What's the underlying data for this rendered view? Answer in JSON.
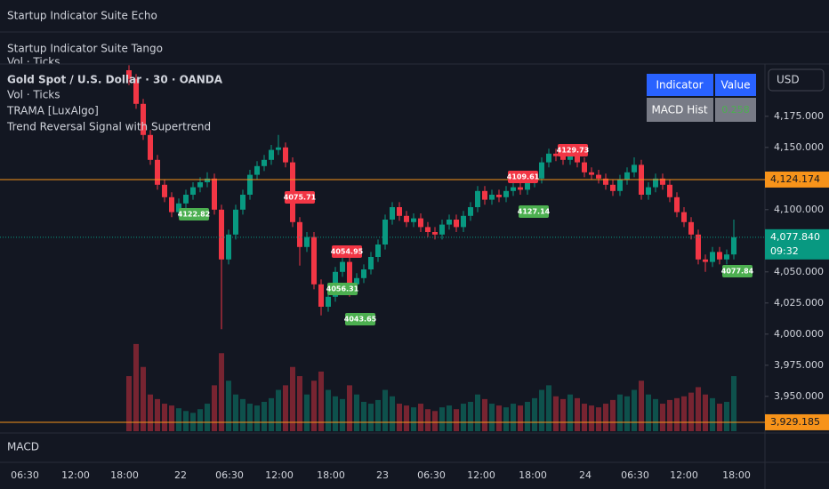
{
  "header": {
    "panel_1": "Startup Indicator Suite Echo",
    "panel_2": "Startup Indicator Suite Tango",
    "panel_2_sub": "Vol · Ticks"
  },
  "chart_data": {
    "type": "candlestick",
    "title": "Gold Spot / U.S. Dollar · 30 · OANDA",
    "indicators": [
      "Vol · Ticks",
      "TRAMA [LuxAlgo]",
      "Trend Reversal Signal with Supertrend"
    ],
    "currency": "USD",
    "colors": {
      "up": "#089981",
      "down": "#f23645"
    },
    "open": [
      4212,
      4205,
      4185,
      4160,
      4140,
      4120,
      4110,
      4098,
      4105,
      4112,
      4118,
      4122,
      4125,
      4100,
      4060,
      4080,
      4100,
      4112,
      4128,
      4135,
      4140,
      4148,
      4150,
      4138,
      4090,
      4070,
      4078,
      4040,
      4022,
      4030,
      4050,
      4058,
      4040,
      4045,
      4052,
      4062,
      4072,
      4092,
      4102,
      4095,
      4090,
      4093,
      4086,
      4082,
      4080,
      4088,
      4092,
      4086,
      4095,
      4102,
      4115,
      4108,
      4112,
      4110,
      4115,
      4118,
      4116,
      4122,
      4125,
      4138,
      4145,
      4143,
      4140,
      4146,
      4138,
      4130,
      4128,
      4125,
      4120,
      4115,
      4124,
      4130,
      4136,
      4112,
      4118,
      4125,
      4120,
      4110,
      4098,
      4090,
      4080,
      4060,
      4058,
      4066,
      4060,
      4064
    ],
    "high": [
      4216,
      4209,
      4189,
      4164,
      4144,
      4124,
      4114,
      4109,
      4116,
      4122,
      4126,
      4130,
      4129,
      4104,
      4084,
      4104,
      4116,
      4132,
      4139,
      4144,
      4152,
      4160,
      4154,
      4142,
      4094,
      4082,
      4082,
      4044,
      4034,
      4054,
      4062,
      4062,
      4049,
      4056,
      4066,
      4076,
      4096,
      4106,
      4106,
      4099,
      4097,
      4097,
      4090,
      4086,
      4092,
      4096,
      4096,
      4099,
      4106,
      4119,
      4119,
      4116,
      4116,
      4119,
      4122,
      4122,
      4126,
      4129,
      4142,
      4149,
      4149,
      4147,
      4150,
      4150,
      4142,
      4134,
      4132,
      4129,
      4124,
      4128,
      4134,
      4142,
      4140,
      4122,
      4129,
      4129,
      4124,
      4114,
      4102,
      4094,
      4084,
      4064,
      4070,
      4070,
      4068,
      4092
    ],
    "low": [
      4200,
      4181,
      4156,
      4136,
      4116,
      4106,
      4094,
      4094,
      4101,
      4108,
      4114,
      4118,
      4096,
      4004,
      4056,
      4076,
      4096,
      4108,
      4124,
      4131,
      4136,
      4144,
      4134,
      4086,
      4055,
      4066,
      4036,
      4015,
      4018,
      4026,
      4046,
      4030,
      4036,
      4041,
      4048,
      4058,
      4068,
      4088,
      4091,
      4086,
      4086,
      4082,
      4078,
      4076,
      4076,
      4084,
      4082,
      4082,
      4091,
      4098,
      4104,
      4104,
      4106,
      4106,
      4111,
      4112,
      4112,
      4118,
      4121,
      4134,
      4139,
      4136,
      4136,
      4134,
      4126,
      4124,
      4121,
      4116,
      4111,
      4111,
      4120,
      4126,
      4108,
      4108,
      4114,
      4116,
      4106,
      4094,
      4086,
      4076,
      4056,
      4050,
      4054,
      4056,
      4056,
      4060
    ],
    "close": [
      4205,
      4185,
      4160,
      4140,
      4120,
      4110,
      4098,
      4105,
      4112,
      4118,
      4122,
      4125,
      4100,
      4060,
      4080,
      4100,
      4112,
      4128,
      4135,
      4140,
      4148,
      4150,
      4138,
      4090,
      4070,
      4078,
      4040,
      4022,
      4030,
      4050,
      4058,
      4040,
      4045,
      4052,
      4062,
      4072,
      4092,
      4102,
      4095,
      4090,
      4093,
      4086,
      4082,
      4080,
      4088,
      4092,
      4086,
      4095,
      4102,
      4115,
      4108,
      4112,
      4110,
      4115,
      4118,
      4116,
      4122,
      4125,
      4138,
      4145,
      4143,
      4140,
      4146,
      4138,
      4130,
      4128,
      4125,
      4120,
      4115,
      4124,
      4130,
      4136,
      4112,
      4118,
      4125,
      4120,
      4110,
      4098,
      4090,
      4080,
      4060,
      4058,
      4066,
      4060,
      4064,
      4077.84
    ],
    "volume": [
      60,
      95,
      70,
      40,
      35,
      30,
      28,
      25,
      22,
      20,
      24,
      30,
      50,
      85,
      55,
      40,
      35,
      30,
      28,
      32,
      36,
      45,
      50,
      70,
      60,
      40,
      55,
      65,
      45,
      38,
      35,
      50,
      40,
      32,
      30,
      34,
      45,
      38,
      30,
      28,
      26,
      30,
      24,
      22,
      26,
      28,
      24,
      30,
      32,
      40,
      35,
      30,
      28,
      26,
      30,
      28,
      32,
      36,
      45,
      50,
      38,
      35,
      40,
      36,
      30,
      28,
      26,
      30,
      34,
      40,
      38,
      45,
      55,
      40,
      35,
      30,
      34,
      36,
      38,
      42,
      48,
      40,
      36,
      30,
      32,
      60
    ],
    "volume_lim": [
      0,
      400
    ],
    "ylim": [
      3922,
      4217
    ],
    "yticks": [
      {
        "value": 3950,
        "label": "3,950.000"
      },
      {
        "value": 3975,
        "label": "3,975.000"
      },
      {
        "value": 4000,
        "label": "4,000.000"
      },
      {
        "value": 4025,
        "label": "4,025.000"
      },
      {
        "value": 4050,
        "label": "4,050.000"
      },
      {
        "value": 4075,
        "label": "4,075.000"
      },
      {
        "value": 4100,
        "label": "4,100.000"
      },
      {
        "value": 4125,
        "label": "4,125.000"
      },
      {
        "value": 4150,
        "label": "4,150.000"
      },
      {
        "value": 4175,
        "label": "4,175.000"
      }
    ],
    "xticks": [
      "06:30",
      "12:00",
      "18:00",
      "22",
      "06:30",
      "12:00",
      "18:00",
      "23",
      "06:30",
      "12:00",
      "18:00",
      "24",
      "06:30",
      "12:00",
      "18:00"
    ],
    "price_lines": [
      {
        "value": 4124.174,
        "label": "4,124.174",
        "color": "#f7931a"
      },
      {
        "value": 3929.185,
        "label": "3,929.185",
        "color": "#f7931a"
      }
    ],
    "current_price": {
      "value": 4077.84,
      "label": "4,077.840",
      "countdown": "09:32",
      "color": "#089981"
    },
    "signals": [
      {
        "value": 4075.71,
        "kind": "sell"
      },
      {
        "value": 4054.95,
        "kind": "sell"
      },
      {
        "value": 4109.61,
        "kind": "sell"
      },
      {
        "value": 4129.73,
        "kind": "sell"
      },
      {
        "value": 4122.82,
        "kind": "buy"
      },
      {
        "value": 4056.31,
        "kind": "buy"
      },
      {
        "value": 4043.65,
        "kind": "buy"
      },
      {
        "value": 4127.14,
        "kind": "buy"
      },
      {
        "value": 4077.84,
        "kind": "buy"
      }
    ],
    "table": {
      "header": [
        "Indicator",
        "Value"
      ],
      "rows": [
        [
          "MACD Hist",
          "0.258"
        ]
      ]
    },
    "macd_label": "MACD"
  }
}
